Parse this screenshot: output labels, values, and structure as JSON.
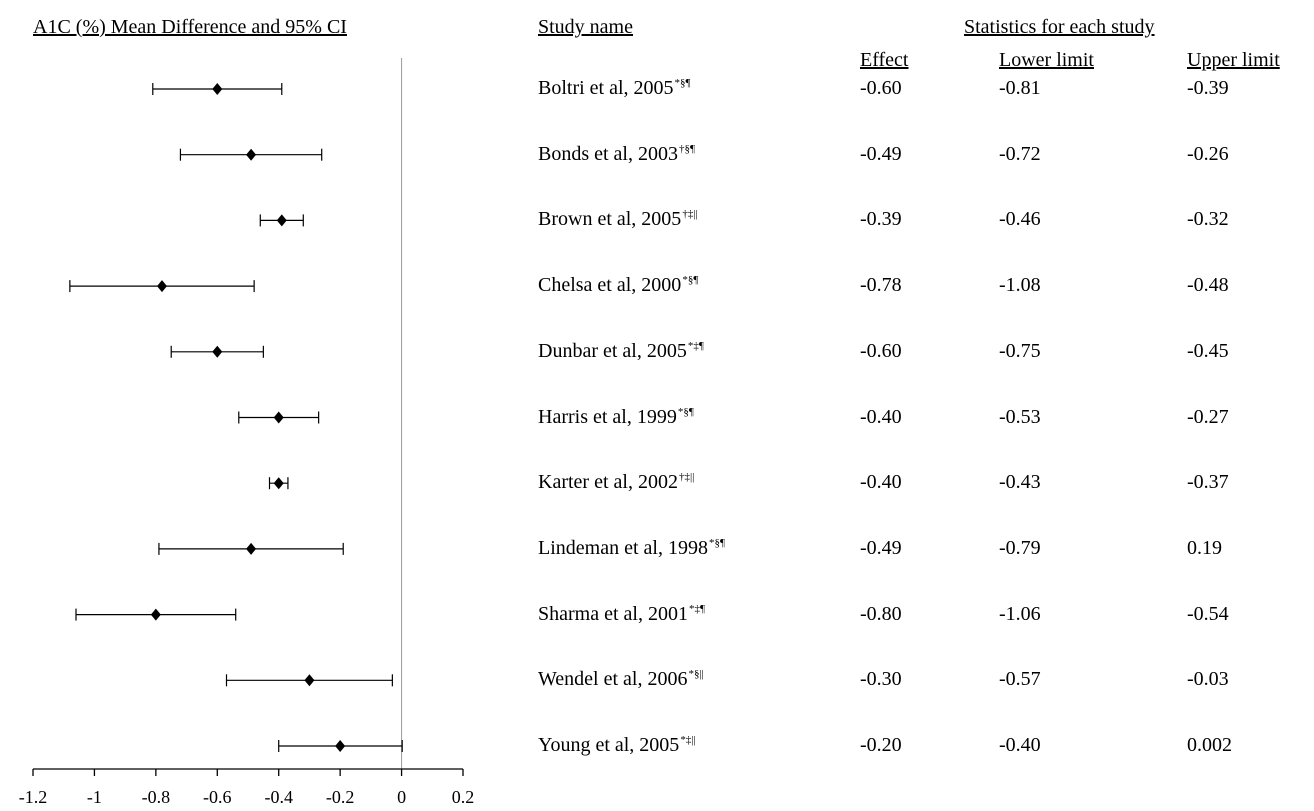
{
  "chart_data": {
    "type": "forest",
    "title": "A1C (%) Mean Difference and 95% CI",
    "xlim": [
      -1.2,
      0.2
    ],
    "x_ticks": [
      "-1.2",
      "-1",
      "-0.8",
      "-0.6",
      "-0.4",
      "-0.2",
      "0",
      "0.2"
    ],
    "reference_line": 0,
    "grid": false,
    "columns": {
      "study": "Study name",
      "group_header": "Statistics for each study",
      "effect": "Effect",
      "lower": "Lower limit",
      "upper": "Upper limit"
    },
    "studies": [
      {
        "name": "Boltri et al, 2005",
        "marks": "*§¶",
        "effect": "-0.60",
        "lower": "-0.81",
        "upper": "-0.39"
      },
      {
        "name": "Bonds et al, 2003",
        "marks": "†§¶",
        "effect": "-0.49",
        "lower": "-0.72",
        "upper": "-0.26"
      },
      {
        "name": "Brown et al, 2005",
        "marks": "†‡||",
        "effect": "-0.39",
        "lower": "-0.46",
        "upper": "-0.32"
      },
      {
        "name": "Chelsa et al, 2000",
        "marks": "*§¶",
        "effect": "-0.78",
        "lower": "-1.08",
        "upper": "-0.48"
      },
      {
        "name": "Dunbar et al, 2005",
        "marks": "*‡¶",
        "effect": "-0.60",
        "lower": "-0.75",
        "upper": "-0.45"
      },
      {
        "name": "Harris et al, 1999",
        "marks": "*§¶",
        "effect": "-0.40",
        "lower": "-0.53",
        "upper": "-0.27"
      },
      {
        "name": "Karter et al, 2002",
        "marks": "†‡||",
        "effect": "-0.40",
        "lower": "-0.43",
        "upper": "-0.37"
      },
      {
        "name": "Lindeman et al, 1998",
        "marks": "*§¶",
        "effect": "-0.49",
        "lower": "-0.79",
        "upper": "0.19"
      },
      {
        "name": "Sharma et al, 2001",
        "marks": "*‡¶",
        "effect": "-0.80",
        "lower": "-1.06",
        "upper": "-0.54"
      },
      {
        "name": "Wendel et al, 2006",
        "marks": "*§||",
        "effect": "-0.30",
        "lower": "-0.57",
        "upper": "-0.03"
      },
      {
        "name": "Young et al, 2005",
        "marks": "*‡||",
        "effect": "-0.20",
        "lower": "-0.40",
        "upper": "0.002"
      }
    ]
  }
}
